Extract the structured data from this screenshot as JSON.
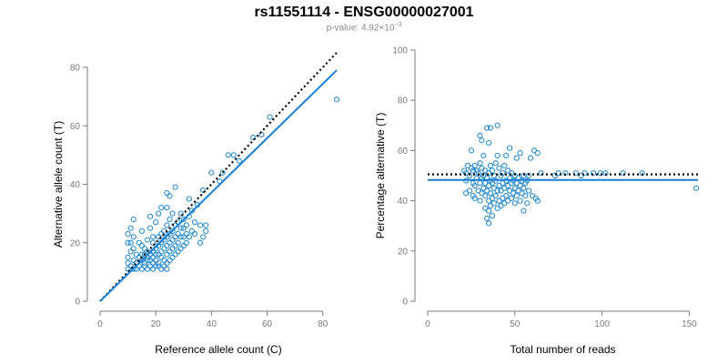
{
  "header": {
    "title": "rs11551114 - ENSG00000027001",
    "pvalue_label": "p-value:",
    "pvalue_mantissa": "4.92×10",
    "pvalue_exponent": "−3"
  },
  "colors": {
    "points": "#1f87cf",
    "fit_line": "#1a7fd6",
    "reference_line": "#000000",
    "axis": "#7a7a7a"
  },
  "chart_data": [
    {
      "type": "scatter",
      "xlabel": "Reference allele count (C)",
      "ylabel": "Alternative allele count (T)",
      "xlim": [
        0,
        85
      ],
      "ylim": [
        0,
        80
      ],
      "xticks": [
        0,
        20,
        40,
        60,
        80
      ],
      "yticks": [
        0,
        20,
        40,
        60,
        80
      ],
      "fit_line": {
        "style": "solid",
        "from": [
          0,
          0
        ],
        "to": [
          85,
          79
        ]
      },
      "reference_line": {
        "style": "dotted",
        "from": [
          0,
          0
        ],
        "to": [
          85,
          85
        ]
      },
      "points": [
        [
          10,
          11
        ],
        [
          10,
          13
        ],
        [
          10,
          15
        ],
        [
          10,
          20
        ],
        [
          10,
          23
        ],
        [
          11,
          12
        ],
        [
          11,
          17
        ],
        [
          11,
          20
        ],
        [
          11,
          25
        ],
        [
          12,
          11
        ],
        [
          12,
          14
        ],
        [
          12,
          18
        ],
        [
          12,
          22
        ],
        [
          12,
          28
        ],
        [
          13,
          11
        ],
        [
          13,
          13
        ],
        [
          13,
          16
        ],
        [
          14,
          12
        ],
        [
          14,
          15
        ],
        [
          14,
          20
        ],
        [
          15,
          11
        ],
        [
          15,
          14
        ],
        [
          15,
          16
        ],
        [
          15,
          19
        ],
        [
          15,
          24
        ],
        [
          16,
          12
        ],
        [
          16,
          13
        ],
        [
          16,
          16
        ],
        [
          16,
          18
        ],
        [
          17,
          11
        ],
        [
          17,
          14
        ],
        [
          17,
          15
        ],
        [
          17,
          17
        ],
        [
          17,
          21
        ],
        [
          18,
          12
        ],
        [
          18,
          14
        ],
        [
          18,
          16
        ],
        [
          18,
          25
        ],
        [
          18,
          29
        ],
        [
          19,
          11
        ],
        [
          19,
          13
        ],
        [
          19,
          15
        ],
        [
          19,
          17
        ],
        [
          19,
          20
        ],
        [
          19,
          22
        ],
        [
          20,
          12
        ],
        [
          20,
          14
        ],
        [
          20,
          16
        ],
        [
          20,
          18
        ],
        [
          20,
          27
        ],
        [
          21,
          12
        ],
        [
          21,
          13
        ],
        [
          21,
          16
        ],
        [
          21,
          19
        ],
        [
          21,
          22
        ],
        [
          21,
          30
        ],
        [
          22,
          11
        ],
        [
          22,
          15
        ],
        [
          22,
          17
        ],
        [
          22,
          20
        ],
        [
          22,
          23
        ],
        [
          22,
          32
        ],
        [
          23,
          12
        ],
        [
          23,
          14
        ],
        [
          23,
          18
        ],
        [
          23,
          21
        ],
        [
          23,
          24
        ],
        [
          24,
          11
        ],
        [
          24,
          13
        ],
        [
          24,
          16
        ],
        [
          24,
          19
        ],
        [
          24,
          22
        ],
        [
          24,
          26
        ],
        [
          24,
          32
        ],
        [
          24,
          37
        ],
        [
          25,
          14
        ],
        [
          25,
          17
        ],
        [
          25,
          20
        ],
        [
          25,
          23
        ],
        [
          25,
          28
        ],
        [
          25,
          36
        ],
        [
          26,
          15
        ],
        [
          26,
          18
        ],
        [
          26,
          21
        ],
        [
          26,
          24
        ],
        [
          26,
          30
        ],
        [
          27,
          16
        ],
        [
          27,
          19
        ],
        [
          27,
          22
        ],
        [
          27,
          26
        ],
        [
          27,
          39
        ],
        [
          28,
          17
        ],
        [
          28,
          20
        ],
        [
          28,
          23
        ],
        [
          28,
          27
        ],
        [
          29,
          18
        ],
        [
          29,
          22
        ],
        [
          29,
          25
        ],
        [
          29,
          30
        ],
        [
          30,
          19
        ],
        [
          30,
          22
        ],
        [
          30,
          25
        ],
        [
          30,
          28
        ],
        [
          31,
          20
        ],
        [
          31,
          23
        ],
        [
          31,
          26
        ],
        [
          32,
          22
        ],
        [
          32,
          29
        ],
        [
          32,
          35
        ],
        [
          33,
          24
        ],
        [
          33,
          31
        ],
        [
          34,
          23
        ],
        [
          34,
          27
        ],
        [
          35,
          33
        ],
        [
          36,
          20
        ],
        [
          36,
          26
        ],
        [
          37,
          22
        ],
        [
          37,
          38
        ],
        [
          38,
          24
        ],
        [
          38,
          26
        ],
        [
          40,
          44
        ],
        [
          43,
          41
        ],
        [
          44,
          44
        ],
        [
          46,
          50
        ],
        [
          48,
          50
        ],
        [
          50,
          48
        ],
        [
          55,
          56
        ],
        [
          58,
          57
        ],
        [
          61,
          63
        ],
        [
          85,
          69
        ]
      ]
    },
    {
      "type": "scatter",
      "xlabel": "Total number of reads",
      "ylabel": "Percentage alternative (T)",
      "xlim": [
        0,
        155
      ],
      "ylim": [
        0,
        100
      ],
      "xticks": [
        0,
        50,
        100,
        150
      ],
      "yticks": [
        0,
        20,
        40,
        60,
        80,
        100
      ],
      "fit_line": {
        "style": "solid",
        "y": 48.3
      },
      "reference_line": {
        "style": "dotted",
        "y": 50.5
      },
      "points": [
        [
          21,
          52
        ],
        [
          22,
          43
        ],
        [
          22,
          48
        ],
        [
          22,
          51
        ],
        [
          23,
          54
        ],
        [
          24,
          44
        ],
        [
          24,
          50
        ],
        [
          25,
          53
        ],
        [
          25,
          60
        ],
        [
          26,
          42
        ],
        [
          26,
          47
        ],
        [
          26,
          52
        ],
        [
          27,
          41
        ],
        [
          27,
          46
        ],
        [
          27,
          54
        ],
        [
          28,
          49
        ],
        [
          28,
          52
        ],
        [
          29,
          44
        ],
        [
          29,
          51
        ],
        [
          30,
          40
        ],
        [
          30,
          47
        ],
        [
          30,
          55
        ],
        [
          30,
          66
        ],
        [
          31,
          43
        ],
        [
          31,
          49
        ],
        [
          31,
          53
        ],
        [
          31,
          64
        ],
        [
          32,
          45
        ],
        [
          32,
          50
        ],
        [
          32,
          58
        ],
        [
          33,
          37
        ],
        [
          33,
          42
        ],
        [
          33,
          47
        ],
        [
          33,
          52
        ],
        [
          34,
          33
        ],
        [
          34,
          44
        ],
        [
          34,
          49
        ],
        [
          34,
          69
        ],
        [
          35,
          31
        ],
        [
          35,
          36
        ],
        [
          35,
          40
        ],
        [
          35,
          46
        ],
        [
          35,
          51
        ],
        [
          35,
          63
        ],
        [
          36,
          38
        ],
        [
          36,
          43
        ],
        [
          36,
          48
        ],
        [
          36,
          54
        ],
        [
          36,
          69
        ],
        [
          37,
          34
        ],
        [
          37,
          41
        ],
        [
          37,
          47
        ],
        [
          37,
          52
        ],
        [
          38,
          39
        ],
        [
          38,
          45
        ],
        [
          38,
          50
        ],
        [
          39,
          42
        ],
        [
          39,
          48
        ],
        [
          39,
          55
        ],
        [
          40,
          37
        ],
        [
          40,
          44
        ],
        [
          40,
          58
        ],
        [
          40,
          70
        ],
        [
          41,
          40
        ],
        [
          41,
          46
        ],
        [
          41,
          53
        ],
        [
          42,
          38
        ],
        [
          42,
          44
        ],
        [
          42,
          50
        ],
        [
          43,
          41
        ],
        [
          43,
          47
        ],
        [
          43,
          51
        ],
        [
          44,
          39
        ],
        [
          44,
          45
        ],
        [
          44,
          54
        ],
        [
          45,
          42
        ],
        [
          45,
          48
        ],
        [
          45,
          58
        ],
        [
          46,
          40
        ],
        [
          46,
          46
        ],
        [
          46,
          52
        ],
        [
          47,
          44
        ],
        [
          47,
          49
        ],
        [
          47,
          61
        ],
        [
          48,
          41
        ],
        [
          48,
          47
        ],
        [
          48,
          51
        ],
        [
          49,
          43
        ],
        [
          49,
          48
        ],
        [
          50,
          39
        ],
        [
          50,
          45
        ],
        [
          50,
          50
        ],
        [
          51,
          42
        ],
        [
          51,
          47
        ],
        [
          51,
          57
        ],
        [
          52,
          44
        ],
        [
          52,
          49
        ],
        [
          53,
          40
        ],
        [
          53,
          46
        ],
        [
          53,
          59
        ],
        [
          54,
          43
        ],
        [
          54,
          48
        ],
        [
          55,
          36
        ],
        [
          55,
          45
        ],
        [
          55,
          50
        ],
        [
          56,
          42
        ],
        [
          56,
          47
        ],
        [
          57,
          39
        ],
        [
          57,
          48
        ],
        [
          58,
          44
        ],
        [
          58,
          50
        ],
        [
          59,
          57
        ],
        [
          60,
          42
        ],
        [
          61,
          60
        ],
        [
          62,
          41
        ],
        [
          63,
          40
        ],
        [
          63,
          59
        ],
        [
          65,
          51
        ],
        [
          73,
          50
        ],
        [
          75,
          51
        ],
        [
          79,
          51
        ],
        [
          85,
          51
        ],
        [
          88,
          50
        ],
        [
          90,
          51
        ],
        [
          95,
          51
        ],
        [
          99,
          51
        ],
        [
          102,
          51
        ],
        [
          112,
          51
        ],
        [
          123,
          51
        ],
        [
          154,
          45
        ]
      ]
    }
  ]
}
